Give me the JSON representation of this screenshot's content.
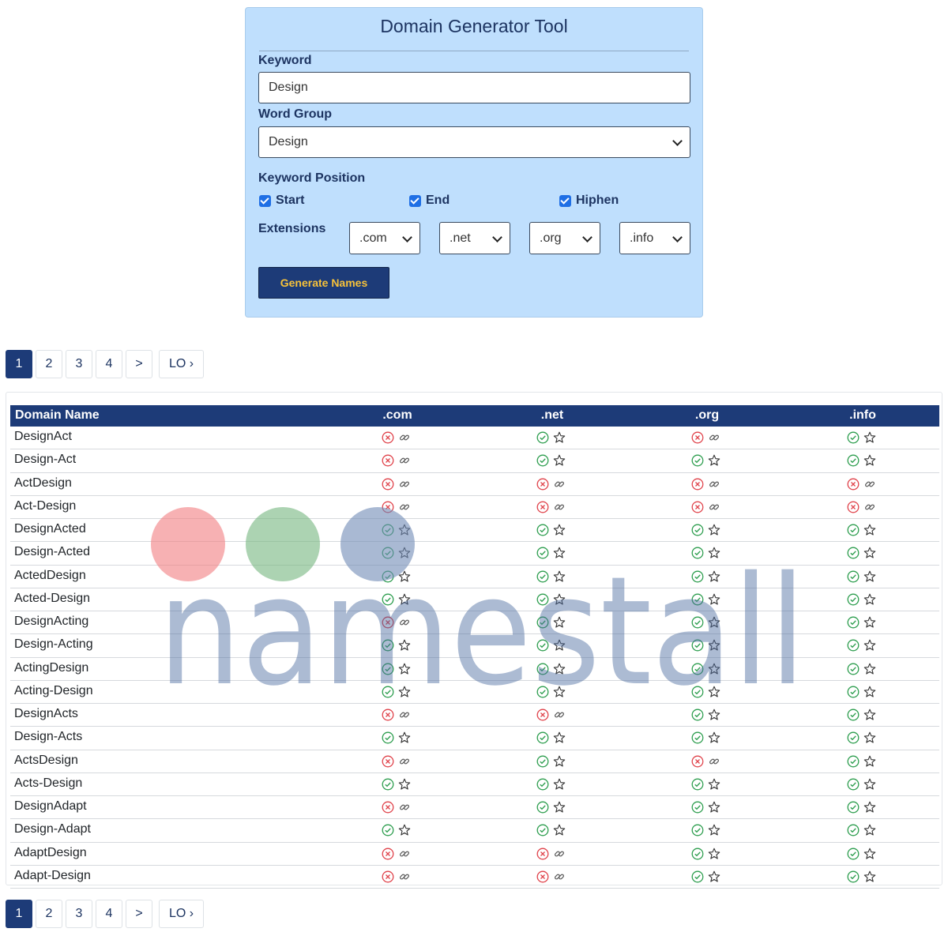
{
  "tool": {
    "title": "Domain Generator Tool",
    "keyword_label": "Keyword",
    "keyword_value": "Design",
    "word_group_label": "Word Group",
    "word_group_value": "Design",
    "keyword_position_label": "Keyword Position",
    "positions": [
      {
        "label": "Start",
        "checked": true
      },
      {
        "label": "End",
        "checked": true
      },
      {
        "label": "Hiphen",
        "checked": true
      }
    ],
    "extensions_label": "Extensions",
    "extensions": [
      ".com",
      ".net",
      ".org",
      ".info"
    ],
    "generate_label": "Generate Names"
  },
  "pagination": {
    "pages": [
      "1",
      "2",
      "3",
      "4"
    ],
    "active": "1",
    "next": ">",
    "last": "LO ›"
  },
  "table": {
    "headers": [
      "Domain Name",
      ".com",
      ".net",
      ".org",
      ".info"
    ],
    "rows": [
      {
        "name": "DesignAct",
        "status": [
          "taken",
          "available",
          "taken",
          "available"
        ]
      },
      {
        "name": "Design-Act",
        "status": [
          "taken",
          "available",
          "available",
          "available"
        ]
      },
      {
        "name": "ActDesign",
        "status": [
          "taken",
          "taken",
          "taken",
          "taken"
        ]
      },
      {
        "name": "Act-Design",
        "status": [
          "taken",
          "taken",
          "taken",
          "taken"
        ]
      },
      {
        "name": "DesignActed",
        "status": [
          "available",
          "available",
          "available",
          "available"
        ]
      },
      {
        "name": "Design-Acted",
        "status": [
          "available",
          "available",
          "available",
          "available"
        ]
      },
      {
        "name": "ActedDesign",
        "status": [
          "available",
          "available",
          "available",
          "available"
        ]
      },
      {
        "name": "Acted-Design",
        "status": [
          "available",
          "available",
          "available",
          "available"
        ]
      },
      {
        "name": "DesignActing",
        "status": [
          "taken",
          "available",
          "available",
          "available"
        ]
      },
      {
        "name": "Design-Acting",
        "status": [
          "available",
          "available",
          "available",
          "available"
        ]
      },
      {
        "name": "ActingDesign",
        "status": [
          "available",
          "available",
          "available",
          "available"
        ]
      },
      {
        "name": "Acting-Design",
        "status": [
          "available",
          "available",
          "available",
          "available"
        ]
      },
      {
        "name": "DesignActs",
        "status": [
          "taken",
          "taken",
          "available",
          "available"
        ]
      },
      {
        "name": "Design-Acts",
        "status": [
          "available",
          "available",
          "available",
          "available"
        ]
      },
      {
        "name": "ActsDesign",
        "status": [
          "taken",
          "available",
          "taken",
          "available"
        ]
      },
      {
        "name": "Acts-Design",
        "status": [
          "available",
          "available",
          "available",
          "available"
        ]
      },
      {
        "name": "DesignAdapt",
        "status": [
          "taken",
          "available",
          "available",
          "available"
        ]
      },
      {
        "name": "Design-Adapt",
        "status": [
          "available",
          "available",
          "available",
          "available"
        ]
      },
      {
        "name": "AdaptDesign",
        "status": [
          "taken",
          "taken",
          "available",
          "available"
        ]
      },
      {
        "name": "Adapt-Design",
        "status": [
          "taken",
          "taken",
          "available",
          "available"
        ]
      }
    ]
  },
  "icons": {
    "available": "check-circle-icon",
    "favorite": "star-icon",
    "taken": "x-circle-icon",
    "link": "link-icon"
  },
  "colors": {
    "panel_bg": "#bfdffd",
    "brand_navy": "#1d3b78",
    "button_text": "#f7c23a",
    "available_green": "#2e9e4f",
    "taken_red": "#e0434b"
  },
  "watermark": {
    "text": "namestall"
  }
}
